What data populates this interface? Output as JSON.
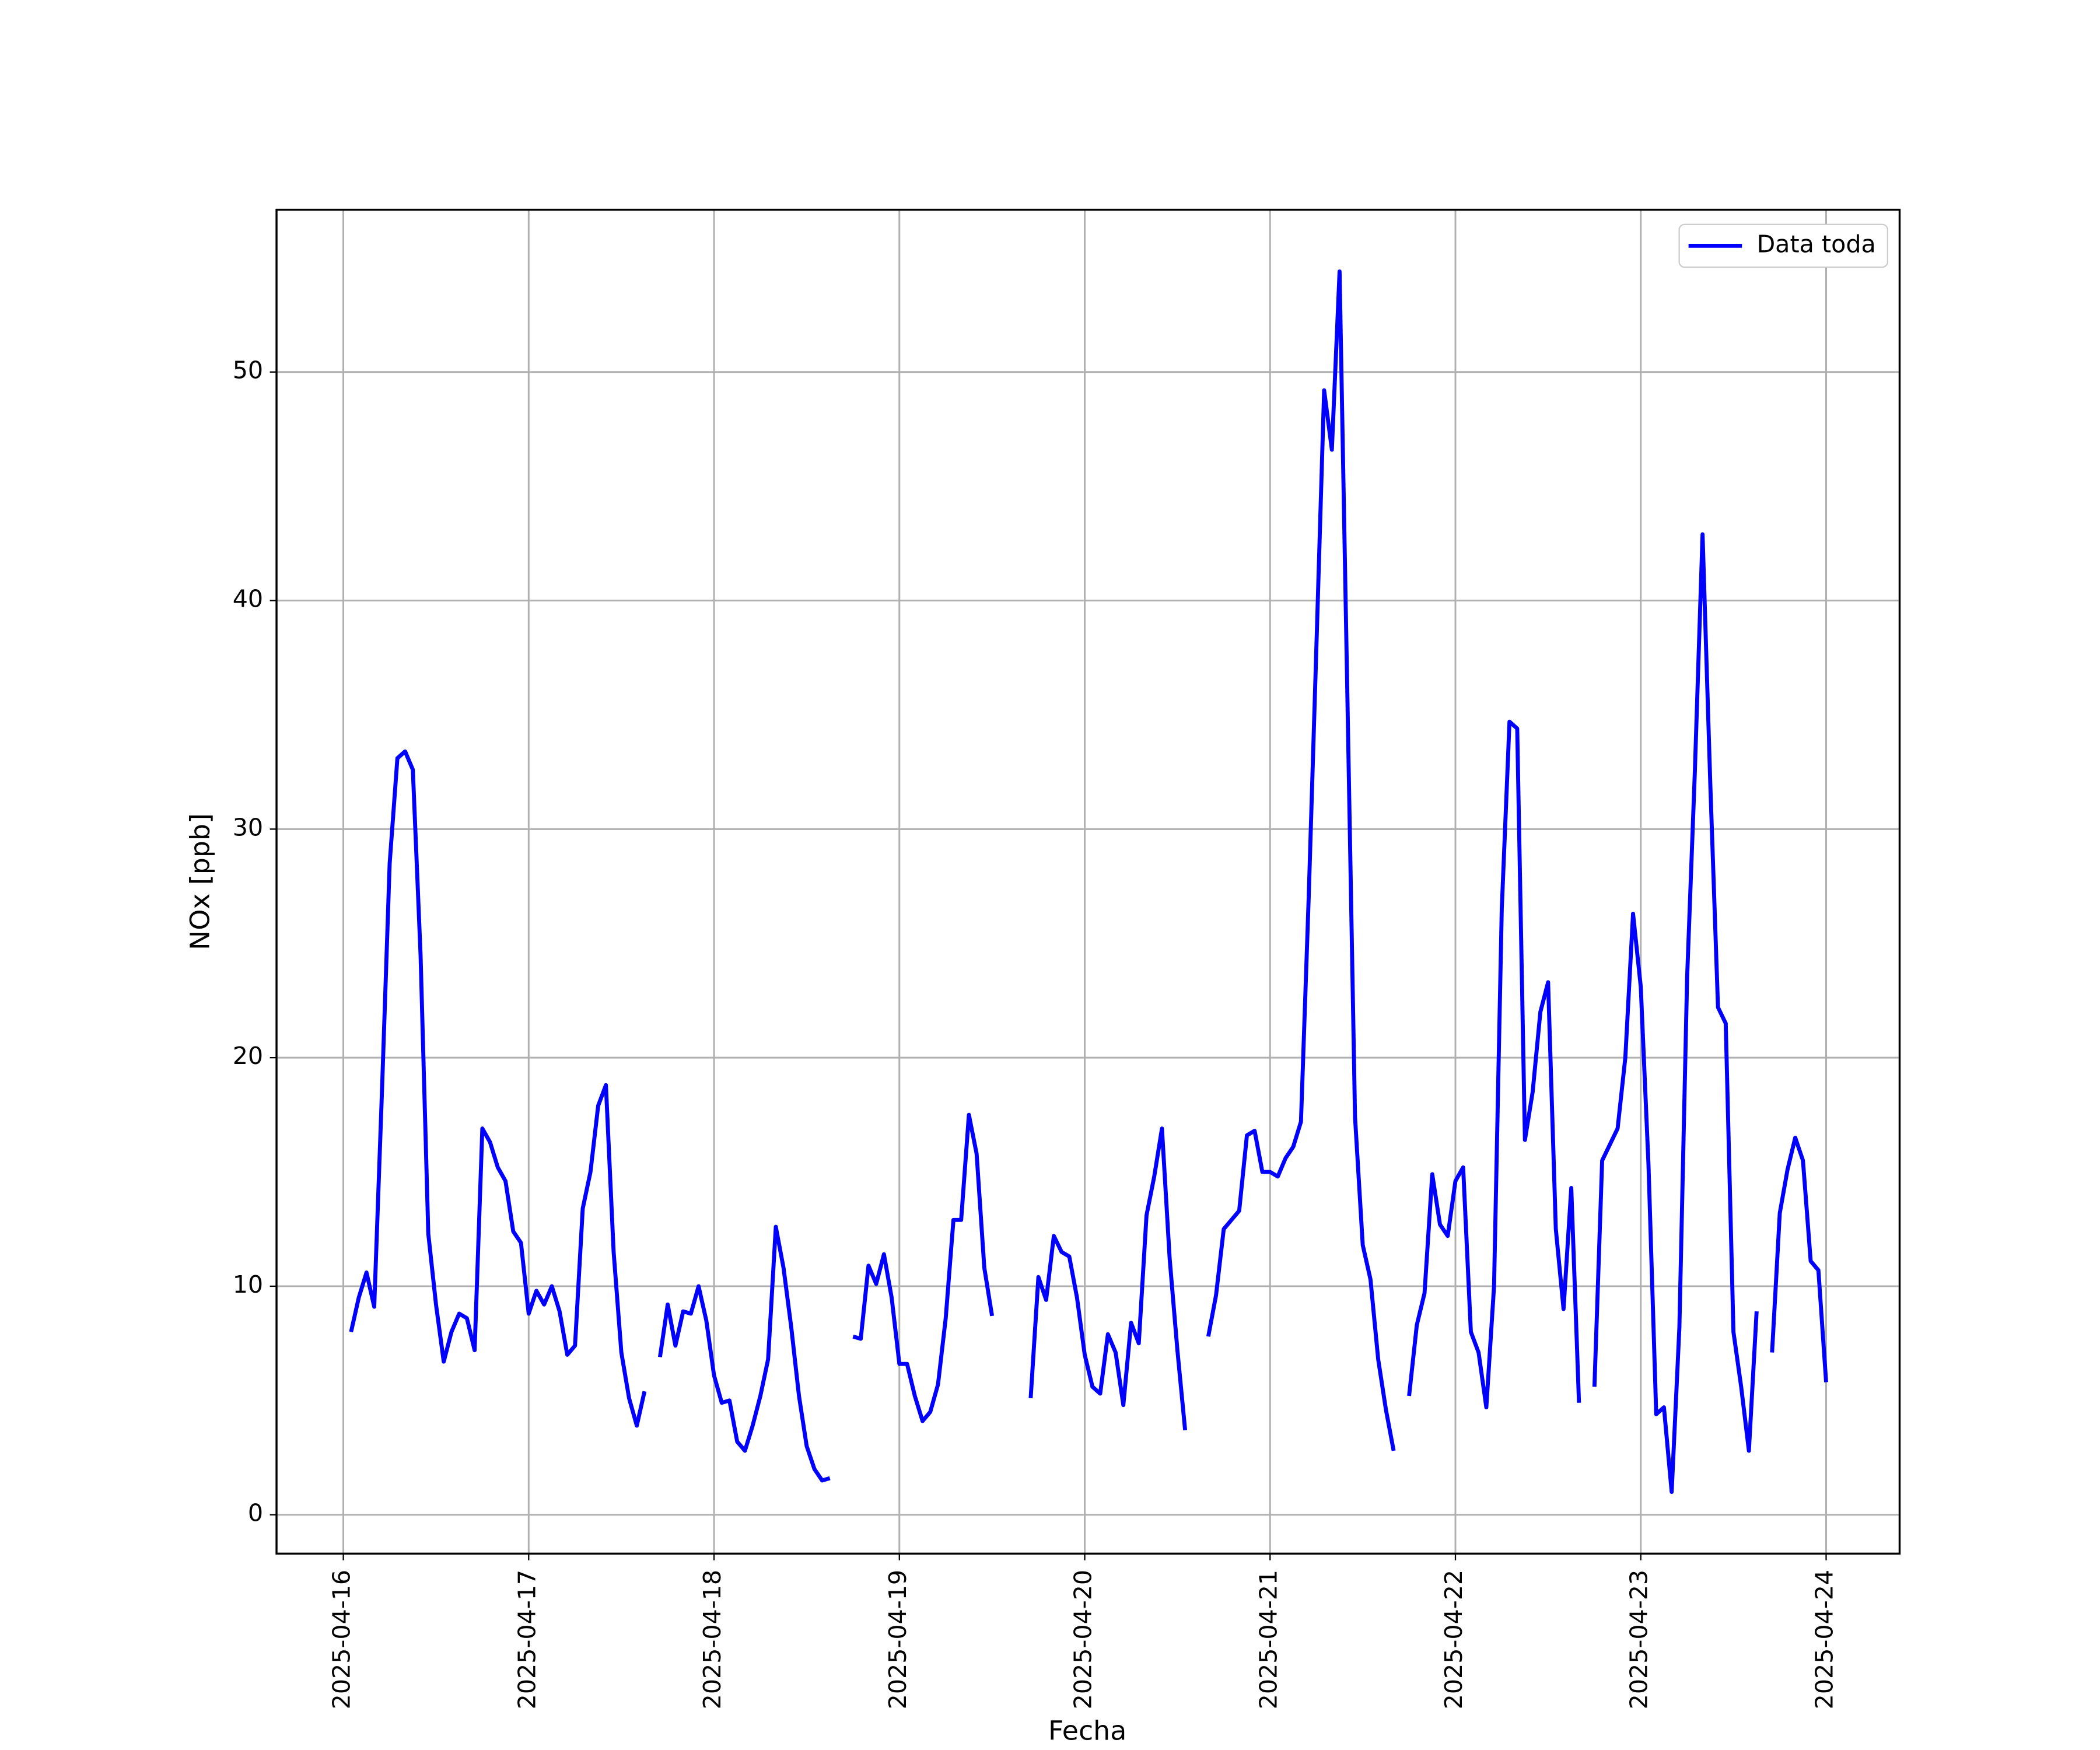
{
  "chart_data": {
    "type": "line",
    "x_label": "Fecha",
    "y_label": "NOx [ppb]",
    "x": [
      "2025-04-16 01:00",
      "2025-04-16 02:00",
      "2025-04-16 03:00",
      "2025-04-16 04:00",
      "2025-04-16 05:00",
      "2025-04-16 06:00",
      "2025-04-16 07:00",
      "2025-04-16 08:00",
      "2025-04-16 09:00",
      "2025-04-16 10:00",
      "2025-04-16 11:00",
      "2025-04-16 12:00",
      "2025-04-16 13:00",
      "2025-04-16 14:00",
      "2025-04-16 15:00",
      "2025-04-16 16:00",
      "2025-04-16 17:00",
      "2025-04-16 18:00",
      "2025-04-16 19:00",
      "2025-04-16 20:00",
      "2025-04-16 21:00",
      "2025-04-16 22:00",
      "2025-04-16 23:00",
      "2025-04-17 00:00",
      "2025-04-17 01:00",
      "2025-04-17 02:00",
      "2025-04-17 03:00",
      "2025-04-17 04:00",
      "2025-04-17 05:00",
      "2025-04-17 06:00",
      "2025-04-17 07:00",
      "2025-04-17 08:00",
      "2025-04-17 09:00",
      "2025-04-17 10:00",
      "2025-04-17 11:00",
      "2025-04-17 12:00",
      "2025-04-17 13:00",
      "2025-04-17 14:00",
      "2025-04-17 15:00",
      "2025-04-17 16:00",
      "2025-04-17 17:00",
      "2025-04-17 18:00",
      "2025-04-17 19:00",
      "2025-04-17 20:00",
      "2025-04-17 21:00",
      "2025-04-17 22:00",
      "2025-04-17 23:00",
      "2025-04-18 00:00",
      "2025-04-18 01:00",
      "2025-04-18 02:00",
      "2025-04-18 03:00",
      "2025-04-18 04:00",
      "2025-04-18 05:00",
      "2025-04-18 06:00",
      "2025-04-18 07:00",
      "2025-04-18 08:00",
      "2025-04-18 09:00",
      "2025-04-18 10:00",
      "2025-04-18 11:00",
      "2025-04-18 12:00",
      "2025-04-18 13:00",
      "2025-04-18 14:00",
      "2025-04-18 15:00",
      "2025-04-18 16:00",
      "2025-04-18 17:00",
      "2025-04-18 18:00",
      "2025-04-18 19:00",
      "2025-04-18 20:00",
      "2025-04-18 21:00",
      "2025-04-18 22:00",
      "2025-04-18 23:00",
      "2025-04-19 00:00",
      "2025-04-19 01:00",
      "2025-04-19 02:00",
      "2025-04-19 03:00",
      "2025-04-19 04:00",
      "2025-04-19 05:00",
      "2025-04-19 06:00",
      "2025-04-19 07:00",
      "2025-04-19 08:00",
      "2025-04-19 09:00",
      "2025-04-19 10:00",
      "2025-04-19 11:00",
      "2025-04-19 12:00",
      "2025-04-19 13:00",
      "2025-04-19 14:00",
      "2025-04-19 15:00",
      "2025-04-19 16:00",
      "2025-04-19 17:00",
      "2025-04-19 18:00",
      "2025-04-19 19:00",
      "2025-04-19 20:00",
      "2025-04-19 21:00",
      "2025-04-19 22:00",
      "2025-04-19 23:00",
      "2025-04-20 00:00",
      "2025-04-20 01:00",
      "2025-04-20 02:00",
      "2025-04-20 03:00",
      "2025-04-20 04:00",
      "2025-04-20 05:00",
      "2025-04-20 06:00",
      "2025-04-20 07:00",
      "2025-04-20 08:00",
      "2025-04-20 09:00",
      "2025-04-20 10:00",
      "2025-04-20 11:00",
      "2025-04-20 12:00",
      "2025-04-20 13:00",
      "2025-04-20 14:00",
      "2025-04-20 15:00",
      "2025-04-20 16:00",
      "2025-04-20 17:00",
      "2025-04-20 18:00",
      "2025-04-20 19:00",
      "2025-04-20 20:00",
      "2025-04-20 21:00",
      "2025-04-20 22:00",
      "2025-04-20 23:00",
      "2025-04-21 00:00",
      "2025-04-21 01:00",
      "2025-04-21 02:00",
      "2025-04-21 03:00",
      "2025-04-21 04:00",
      "2025-04-21 05:00",
      "2025-04-21 06:00",
      "2025-04-21 07:00",
      "2025-04-21 08:00",
      "2025-04-21 09:00",
      "2025-04-21 10:00",
      "2025-04-21 11:00",
      "2025-04-21 12:00",
      "2025-04-21 13:00",
      "2025-04-21 14:00",
      "2025-04-21 15:00",
      "2025-04-21 16:00",
      "2025-04-21 17:00",
      "2025-04-21 18:00",
      "2025-04-21 19:00",
      "2025-04-21 20:00",
      "2025-04-21 21:00",
      "2025-04-21 22:00",
      "2025-04-21 23:00",
      "2025-04-22 00:00",
      "2025-04-22 01:00",
      "2025-04-22 02:00",
      "2025-04-22 03:00",
      "2025-04-22 04:00",
      "2025-04-22 05:00",
      "2025-04-22 06:00",
      "2025-04-22 07:00",
      "2025-04-22 08:00",
      "2025-04-22 09:00",
      "2025-04-22 10:00",
      "2025-04-22 11:00",
      "2025-04-22 12:00",
      "2025-04-22 13:00",
      "2025-04-22 14:00",
      "2025-04-22 15:00",
      "2025-04-22 16:00",
      "2025-04-22 17:00",
      "2025-04-22 18:00",
      "2025-04-22 19:00",
      "2025-04-22 20:00",
      "2025-04-22 21:00",
      "2025-04-22 22:00",
      "2025-04-22 23:00",
      "2025-04-23 00:00",
      "2025-04-23 01:00",
      "2025-04-23 02:00",
      "2025-04-23 03:00",
      "2025-04-23 04:00",
      "2025-04-23 05:00",
      "2025-04-23 06:00",
      "2025-04-23 07:00",
      "2025-04-23 08:00",
      "2025-04-23 09:00",
      "2025-04-23 10:00",
      "2025-04-23 11:00",
      "2025-04-23 12:00",
      "2025-04-23 13:00",
      "2025-04-23 14:00",
      "2025-04-23 15:00",
      "2025-04-23 16:00",
      "2025-04-23 17:00",
      "2025-04-23 18:00",
      "2025-04-23 19:00",
      "2025-04-23 20:00",
      "2025-04-23 21:00",
      "2025-04-23 22:00",
      "2025-04-23 23:00",
      "2025-04-24 00:00"
    ],
    "series": [
      {
        "name": "Data toda",
        "color": "#0000ff",
        "values": [
          8.0,
          9.5,
          10.6,
          9.1,
          18.5,
          28.5,
          33.1,
          33.4,
          32.6,
          24.5,
          12.3,
          9.2,
          6.7,
          8.0,
          8.8,
          8.6,
          7.2,
          16.9,
          16.3,
          15.2,
          14.6,
          12.4,
          11.9,
          8.8,
          9.8,
          9.2,
          10.0,
          8.9,
          7.0,
          7.4,
          13.4,
          15.0,
          17.9,
          18.8,
          11.5,
          7.1,
          5.1,
          3.9,
          5.4,
          null,
          6.9,
          9.2,
          7.4,
          8.9,
          8.8,
          10.0,
          8.5,
          6.1,
          4.9,
          5.0,
          3.2,
          2.8,
          3.9,
          5.2,
          6.8,
          12.6,
          10.8,
          8.2,
          5.2,
          3.0,
          2.0,
          1.5,
          1.6,
          null,
          null,
          7.8,
          7.7,
          10.9,
          10.1,
          11.4,
          9.5,
          6.6,
          6.6,
          5.2,
          4.1,
          4.5,
          5.7,
          8.6,
          12.9,
          12.9,
          17.5,
          15.8,
          10.8,
          8.7,
          null,
          null,
          null,
          null,
          5.1,
          10.4,
          9.4,
          12.2,
          11.5,
          11.3,
          9.5,
          7.0,
          5.6,
          5.3,
          7.9,
          7.1,
          4.8,
          8.4,
          7.5,
          13.1,
          14.8,
          16.9,
          11.2,
          7.2,
          3.7,
          null,
          null,
          7.8,
          9.6,
          12.5,
          12.9,
          13.3,
          16.6,
          16.8,
          15.0,
          15.0,
          14.8,
          15.6,
          16.1,
          17.2,
          27.0,
          38.0,
          49.2,
          46.6,
          54.4,
          36.0,
          17.4,
          11.8,
          10.3,
          6.8,
          4.6,
          2.8,
          null,
          5.2,
          8.3,
          9.7,
          14.9,
          12.7,
          12.2,
          14.6,
          15.2,
          8.0,
          7.1,
          4.7,
          10.0,
          26.5,
          34.7,
          34.4,
          16.4,
          18.5,
          22.0,
          23.3,
          12.5,
          9.0,
          14.3,
          4.9,
          null,
          5.6,
          15.5,
          16.2,
          16.9,
          20.0,
          26.3,
          23.1,
          15.3,
          4.4,
          4.7,
          1.0,
          8.2,
          23.5,
          32.5,
          42.9,
          32.0,
          22.2,
          21.5,
          8.0,
          5.6,
          2.8,
          8.9,
          null,
          7.1,
          13.2,
          15.1,
          16.5,
          15.5,
          11.1,
          10.7,
          5.8
        ]
      }
    ],
    "xlim": [
      "2025-04-15 15:21",
      "2025-04-24 09:31"
    ],
    "xticks": [
      "2025-04-16",
      "2025-04-17",
      "2025-04-18",
      "2025-04-19",
      "2025-04-20",
      "2025-04-21",
      "2025-04-22",
      "2025-04-23",
      "2025-04-24"
    ],
    "ylim": [
      -1.7,
      57.1
    ],
    "yticks": [
      0,
      10,
      20,
      30,
      40,
      50
    ],
    "grid": true,
    "legend": "upper right"
  }
}
